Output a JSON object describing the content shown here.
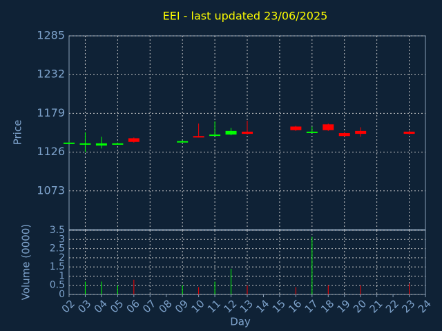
{
  "chart_data": [
    {
      "type": "candlestick",
      "title": "EEI - last updated 23/06/2025",
      "ylabel": "Price",
      "x": [
        2,
        3,
        4,
        5,
        6,
        9,
        10,
        11,
        12,
        13,
        16,
        17,
        18,
        19,
        20,
        23
      ],
      "open": [
        1139,
        1138,
        1135,
        1138,
        1145,
        1141,
        1148,
        1150,
        1150,
        1154,
        1161,
        1153,
        1164,
        1152,
        1155,
        1154
      ],
      "high": [
        1140,
        1153,
        1147,
        1139,
        1146,
        1142,
        1165,
        1168,
        1159,
        1169,
        1162,
        1161,
        1165,
        1153,
        1160,
        1155
      ],
      "low": [
        1138,
        1126,
        1131,
        1137,
        1139,
        1140,
        1146,
        1149,
        1149,
        1150,
        1155,
        1153,
        1155,
        1147,
        1147,
        1150
      ],
      "close": [
        1139,
        1138,
        1138,
        1138,
        1140,
        1141,
        1146,
        1150,
        1155,
        1151,
        1156,
        1154,
        1156,
        1148,
        1151,
        1151
      ],
      "xlim": [
        2,
        24
      ],
      "ylim": [
        1020,
        1285
      ],
      "yticks": [
        1073,
        1126,
        1179,
        1232,
        1285
      ],
      "up_color": "#00ff00",
      "down_color": "#ff0000",
      "grid": true
    },
    {
      "type": "bar",
      "ylabel": "Volume (0000)",
      "xlabel": "Day",
      "x": [
        2,
        3,
        4,
        5,
        6,
        9,
        10,
        11,
        12,
        13,
        16,
        17,
        18,
        19,
        20,
        23
      ],
      "values": [
        null,
        0.7,
        0.7,
        0.5,
        0.8,
        0.5,
        0.4,
        0.7,
        1.4,
        0.5,
        0.4,
        3.15,
        0.5,
        null,
        0.5,
        0.6
      ],
      "xlim": [
        2,
        24
      ],
      "xticks": [
        {
          "value": 2,
          "label": "02"
        },
        {
          "value": 3,
          "label": "03"
        },
        {
          "value": 4,
          "label": "04"
        },
        {
          "value": 5,
          "label": "05"
        },
        {
          "value": 6,
          "label": "06"
        },
        {
          "value": 7,
          "label": "07"
        },
        {
          "value": 8,
          "label": "08"
        },
        {
          "value": 9,
          "label": "09"
        },
        {
          "value": 10,
          "label": "10"
        },
        {
          "value": 11,
          "label": "11"
        },
        {
          "value": 12,
          "label": "12"
        },
        {
          "value": 13,
          "label": "13"
        },
        {
          "value": 14,
          "label": "14"
        },
        {
          "value": 15,
          "label": "15"
        },
        {
          "value": 16,
          "label": "16"
        },
        {
          "value": 17,
          "label": "17"
        },
        {
          "value": 18,
          "label": "18"
        },
        {
          "value": 19,
          "label": "19"
        },
        {
          "value": 20,
          "label": "20"
        },
        {
          "value": 21,
          "label": "21"
        },
        {
          "value": 22,
          "label": "22"
        },
        {
          "value": 23,
          "label": "23"
        },
        {
          "value": 24,
          "label": "24"
        }
      ],
      "ylim": [
        0,
        3.5
      ],
      "yticks": [
        0,
        0.5,
        1,
        1.5,
        2,
        2.5,
        3,
        3.5
      ],
      "grid": true
    }
  ]
}
